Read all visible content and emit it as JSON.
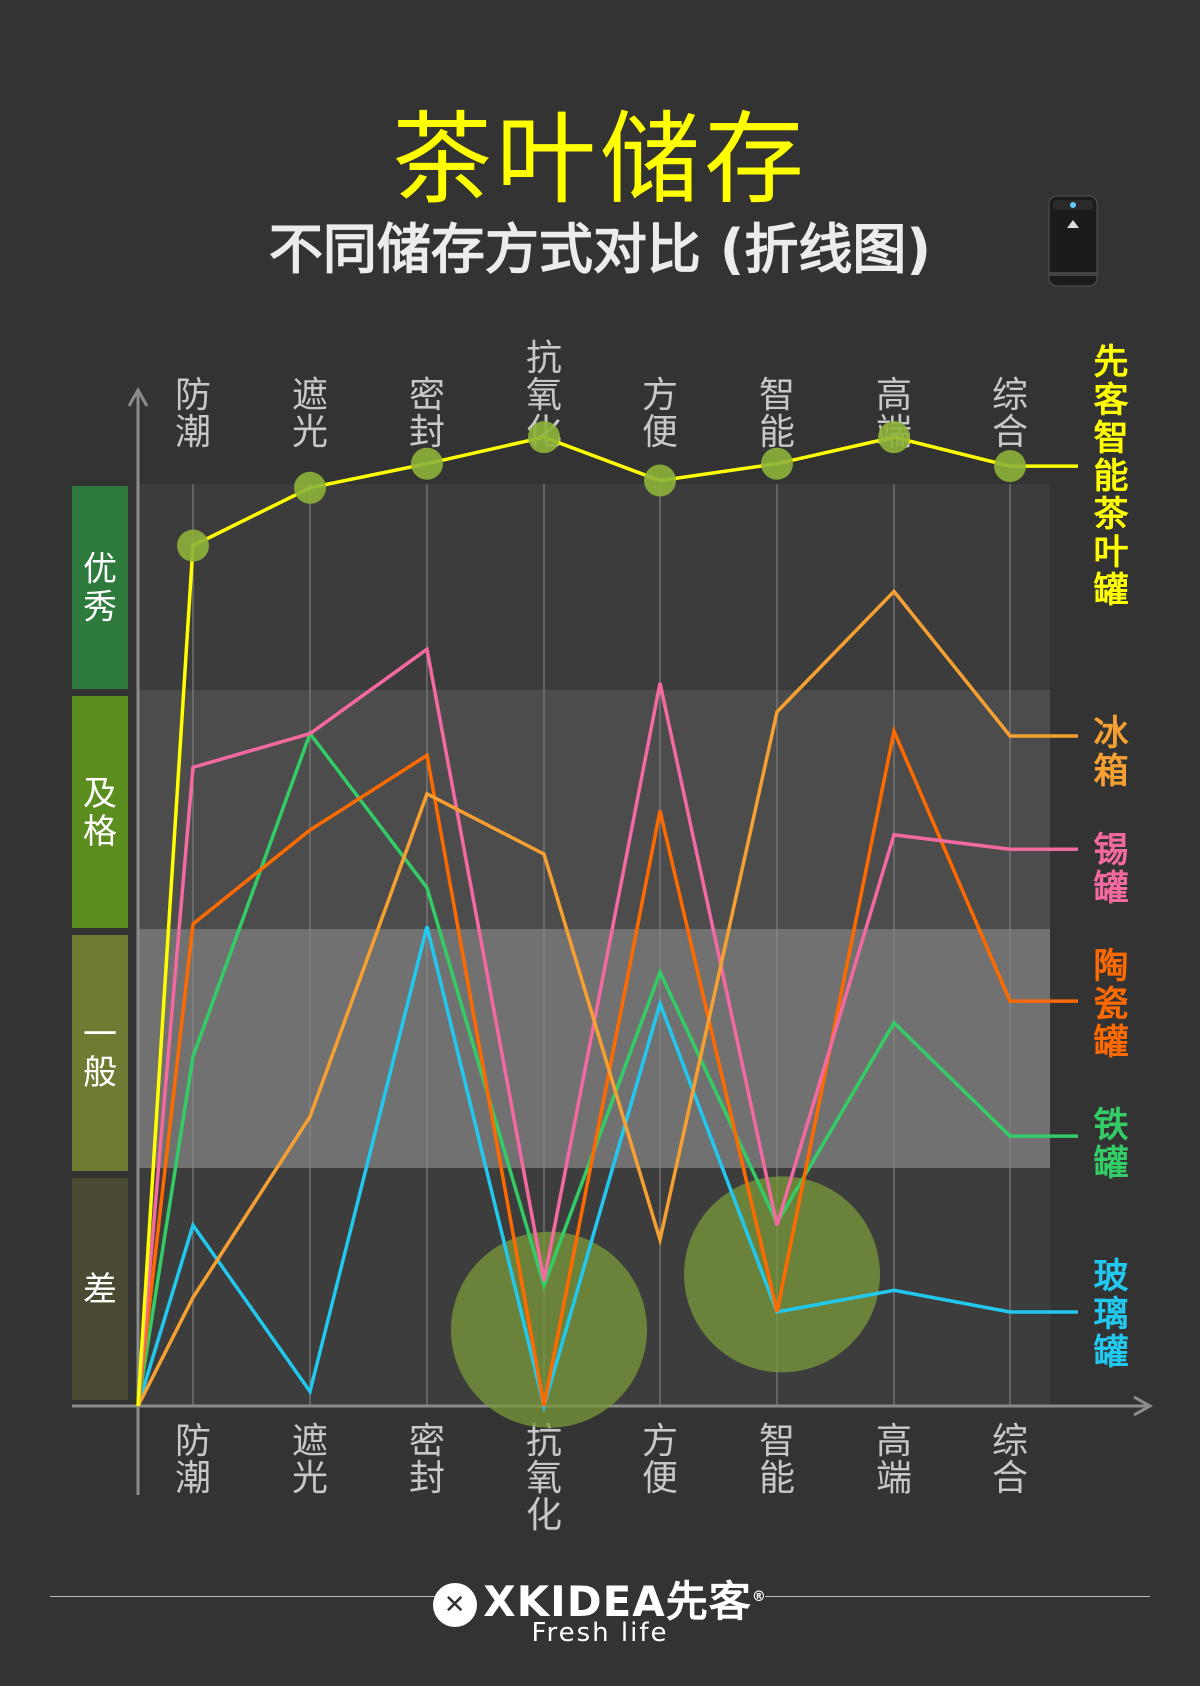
{
  "header": {
    "title": "茶叶储存",
    "subtitle": "不同储存方式对比 (折线图)"
  },
  "footer": {
    "brand": "XKIDEA先客",
    "registered": "®",
    "tagline": "Fresh life"
  },
  "chart_data": {
    "type": "line",
    "title": "茶叶储存",
    "subtitle": "不同储存方式对比 (折线图)",
    "categories": [
      "防潮",
      "遮光",
      "密封",
      "抗氧化",
      "方便",
      "智能",
      "高端",
      "综合"
    ],
    "y_levels": [
      "优秀",
      "及格",
      "一般",
      "差"
    ],
    "y_range": [
      0,
      4
    ],
    "grid": true,
    "legend_placement": "right, at line ends",
    "origin_value": 0,
    "series": [
      {
        "name": "先客智能茶叶罐",
        "color": "#ffff00",
        "values": [
          3.57,
          3.81,
          3.91,
          4.02,
          3.84,
          3.91,
          4.02,
          3.9
        ]
      },
      {
        "name": "冰箱",
        "color": "#f7a032",
        "values": [
          0.45,
          1.2,
          2.54,
          2.29,
          0.69,
          2.88,
          3.38,
          2.78
        ]
      },
      {
        "name": "锡罐",
        "color": "#f46aa0",
        "values": [
          2.65,
          2.79,
          3.14,
          0.52,
          3.0,
          0.75,
          2.37,
          2.31
        ]
      },
      {
        "name": "陶瓷罐",
        "color": "#ff6a00",
        "values": [
          2.0,
          2.39,
          2.7,
          0.0,
          2.47,
          0.39,
          2.8,
          1.68
        ]
      },
      {
        "name": "铁罐",
        "color": "#33cc66",
        "values": [
          1.45,
          2.79,
          2.15,
          0.5,
          1.8,
          0.76,
          1.59,
          1.12
        ]
      },
      {
        "name": "玻璃罐",
        "color": "#22c8ee",
        "values": [
          0.75,
          0.06,
          1.99,
          0.0,
          1.67,
          0.39,
          0.48,
          0.39
        ]
      }
    ],
    "highlights": [
      {
        "category": "抗氧化",
        "value": 0.42
      },
      {
        "category": "智能",
        "value": 0.65
      }
    ]
  }
}
